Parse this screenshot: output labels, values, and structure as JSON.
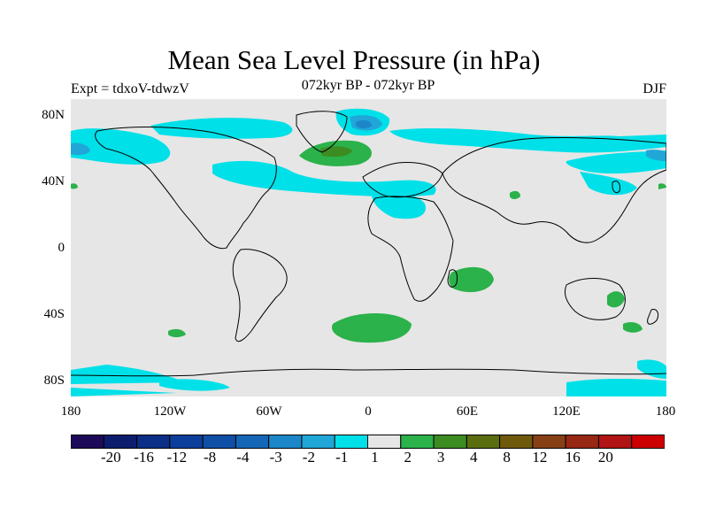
{
  "title": "Mean Sea Level Pressure (in hPa)",
  "subtitle_left": "Expt = tdxoV-tdwzV",
  "subtitle_center": "072kyr BP - 072kyr BP",
  "subtitle_right": "DJF",
  "lat_labels": [
    "80N",
    "40N",
    "0",
    "40S",
    "80S"
  ],
  "lon_labels": [
    "180",
    "120W",
    "60W",
    "0",
    "60E",
    "120E",
    "180"
  ],
  "colorbar": {
    "colors": [
      "#1d0b5a",
      "#0d1d6e",
      "#0b2f86",
      "#0c3f9c",
      "#104fa6",
      "#1467b6",
      "#1c87c8",
      "#21a6d8",
      "#00e0e8",
      "#e6e6e6",
      "#2bb24a",
      "#3d8c22",
      "#5a6e10",
      "#6e5a0a",
      "#874016",
      "#962814",
      "#b01414",
      "#cc0000"
    ],
    "labels": [
      "-20",
      "-16",
      "-12",
      "-8",
      "-4",
      "-3",
      "-2",
      "-1",
      "1",
      "2",
      "3",
      "4",
      "8",
      "12",
      "16",
      "20"
    ]
  },
  "anomaly_regions": [
    {
      "level": "-1",
      "color": "#00e0e8"
    },
    {
      "level": "-2",
      "color": "#21a6d8"
    },
    {
      "level": "-3",
      "color": "#1c87c8"
    },
    {
      "level": "1",
      "color": "#2bb24a"
    },
    {
      "level": "2",
      "color": "#3d8c22"
    }
  ]
}
